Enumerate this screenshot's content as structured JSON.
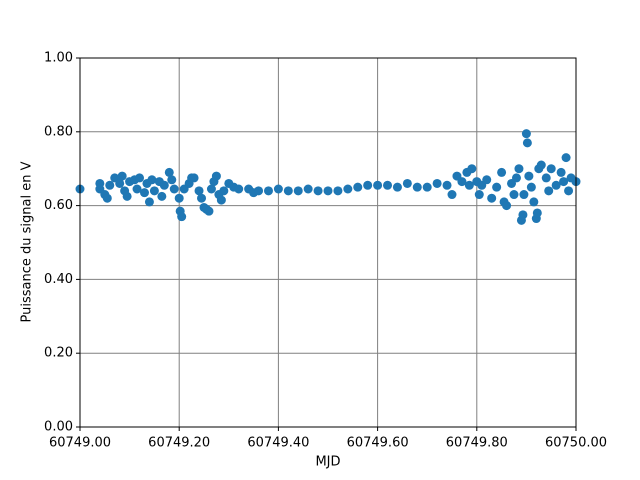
{
  "chart_data": {
    "type": "scatter",
    "x_label": "MJD",
    "y_label": "Puissance du signal en V",
    "color": "#1f77b4",
    "grid": true,
    "xlim": [
      60749.0,
      60750.0
    ],
    "ylim": [
      0,
      1
    ],
    "xticks": [
      {
        "value": 60749.0,
        "label": "60749.00"
      },
      {
        "value": 60749.2,
        "label": "60749.20"
      },
      {
        "value": 60749.4,
        "label": "60749.40"
      },
      {
        "value": 60749.6,
        "label": "60749.60"
      },
      {
        "value": 60749.8,
        "label": "60749.80"
      },
      {
        "value": 60750.0,
        "label": "60750.00"
      }
    ],
    "yticks": [
      {
        "value": 0,
        "label": "0.00"
      },
      {
        "value": 0.2,
        "label": "0.20"
      },
      {
        "value": 0.4,
        "label": "0.40"
      },
      {
        "value": 0.6,
        "label": "0.60"
      },
      {
        "value": 0.8,
        "label": "0.80"
      },
      {
        "value": 1,
        "label": "1.00"
      }
    ],
    "x": [
      60749.0,
      60749.04,
      60749.04,
      60749.05,
      60749.055,
      60749.06,
      60749.07,
      60749.08,
      60749.085,
      60749.09,
      60749.095,
      60749.1,
      60749.11,
      60749.115,
      60749.12,
      60749.13,
      60749.135,
      60749.14,
      60749.145,
      60749.15,
      60749.16,
      60749.165,
      60749.17,
      60749.18,
      60749.185,
      60749.19,
      60749.2,
      60749.202,
      60749.205,
      60749.21,
      60749.22,
      60749.225,
      60749.23,
      60749.24,
      60749.245,
      60749.25,
      60749.255,
      60749.26,
      60749.265,
      60749.27,
      60749.275,
      60749.28,
      60749.285,
      60749.29,
      60749.3,
      60749.31,
      60749.32,
      60749.34,
      60749.35,
      60749.36,
      60749.38,
      60749.4,
      60749.42,
      60749.44,
      60749.46,
      60749.48,
      60749.5,
      60749.52,
      60749.54,
      60749.56,
      60749.58,
      60749.6,
      60749.62,
      60749.64,
      60749.66,
      60749.68,
      60749.7,
      60749.72,
      60749.74,
      60749.75,
      60749.76,
      60749.77,
      60749.78,
      60749.785,
      60749.79,
      60749.8,
      60749.805,
      60749.81,
      60749.82,
      60749.83,
      60749.84,
      60749.85,
      60749.855,
      60749.86,
      60749.87,
      60749.875,
      60749.88,
      60749.885,
      60749.89,
      60749.893,
      60749.895,
      60749.9,
      60749.902,
      60749.905,
      60749.91,
      60749.915,
      60749.92,
      60749.922,
      60749.925,
      60749.93,
      60749.94,
      60749.945,
      60749.95,
      60749.96,
      60749.97,
      60749.975,
      60749.98,
      60749.985,
      60749.99,
      60750.0
    ],
    "y": [
      0.645,
      0.66,
      0.645,
      0.63,
      0.62,
      0.655,
      0.675,
      0.66,
      0.68,
      0.64,
      0.625,
      0.665,
      0.67,
      0.645,
      0.675,
      0.635,
      0.66,
      0.61,
      0.67,
      0.64,
      0.665,
      0.625,
      0.655,
      0.69,
      0.67,
      0.645,
      0.62,
      0.585,
      0.57,
      0.645,
      0.66,
      0.675,
      0.675,
      0.64,
      0.62,
      0.595,
      0.59,
      0.585,
      0.645,
      0.665,
      0.68,
      0.63,
      0.615,
      0.64,
      0.66,
      0.65,
      0.645,
      0.645,
      0.635,
      0.64,
      0.64,
      0.645,
      0.64,
      0.64,
      0.645,
      0.64,
      0.64,
      0.64,
      0.645,
      0.65,
      0.655,
      0.655,
      0.655,
      0.65,
      0.66,
      0.65,
      0.65,
      0.66,
      0.655,
      0.63,
      0.68,
      0.665,
      0.69,
      0.655,
      0.7,
      0.665,
      0.63,
      0.655,
      0.67,
      0.62,
      0.65,
      0.69,
      0.61,
      0.6,
      0.66,
      0.63,
      0.675,
      0.7,
      0.56,
      0.575,
      0.63,
      0.795,
      0.77,
      0.68,
      0.65,
      0.61,
      0.565,
      0.58,
      0.7,
      0.71,
      0.675,
      0.64,
      0.7,
      0.655,
      0.69,
      0.665,
      0.73,
      0.64,
      0.675,
      0.665
    ]
  }
}
